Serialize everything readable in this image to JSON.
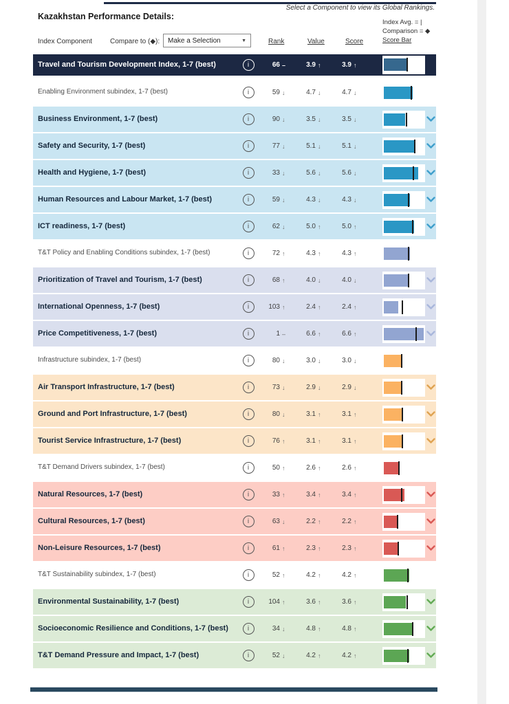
{
  "note": "Select a Component to view its Global Rankings.",
  "title": "Kazakhstan Performance Details:",
  "legend": {
    "line1": "Index Avg. = |",
    "line2": "Comparison = ◆",
    "line3": "Score Bar"
  },
  "controls": {
    "index_component_label": "Index Component",
    "compare_label": "Compare to (◆):",
    "dropdown_value": "Make a Selection",
    "dropdown_caret": "▼",
    "col_rank": "Rank",
    "col_value": "Value",
    "col_score": "Score"
  },
  "dir_glyphs": {
    "up": "↑",
    "down": "↓",
    "same": "–"
  },
  "icons": {
    "info": "i"
  },
  "colors": {
    "rule_top": "#1e2b47",
    "rule_bottom": "#29485e",
    "scrollbar_track": "#f0f0f0",
    "tick": "#1c1c1c",
    "white_box": "#ffffff"
  },
  "groups": {
    "navy": {
      "row": "#1c2843",
      "bar": "#36688e",
      "chev": ""
    },
    "blue": {
      "row": "#c9e5f2",
      "bar": "#2a97c5",
      "chev": "#3f9fcc"
    },
    "lavender": {
      "row": "#dadfee",
      "bar": "#92a5d1",
      "chev": "#a9b7db"
    },
    "orange": {
      "row": "#fce5c8",
      "bar": "#fbb262",
      "chev": "#dfa352"
    },
    "red": {
      "row": "#fdcdc5",
      "bar": "#d95955",
      "chev": "#d95955"
    },
    "green": {
      "row": "#dcebd6",
      "bar": "#5ca654",
      "chev": "#63ab55"
    }
  },
  "rows": [
    {
      "slug": "ttdi",
      "label": "Travel and Tourism Development Index, 1-7 (best)",
      "type": "index",
      "group": "navy",
      "rank": "66",
      "rank_dir": "same",
      "value": "3.9",
      "value_dir": "up",
      "score": "3.9",
      "score_dir": "up",
      "bar_pct": 56,
      "tick_pct": 58,
      "chevron": false
    },
    {
      "slug": "enabling-environment-subindex",
      "label": "Enabling Environment subindex, 1-7 (best)",
      "type": "subindex",
      "group": "blue",
      "rank": "59",
      "rank_dir": "down",
      "value": "4.7",
      "value_dir": "down",
      "score": "4.7",
      "score_dir": "down",
      "bar_pct": 67,
      "tick_pct": 67,
      "chevron": false
    },
    {
      "slug": "business-environment",
      "label": "Business Environment, 1-7 (best)",
      "type": "component",
      "group": "blue",
      "rank": "90",
      "rank_dir": "down",
      "value": "3.5",
      "value_dir": "down",
      "score": "3.5",
      "score_dir": "down",
      "bar_pct": 50,
      "tick_pct": 57,
      "chevron": true
    },
    {
      "slug": "safety-and-security",
      "label": "Safety and Security, 1-7 (best)",
      "type": "component",
      "group": "blue",
      "rank": "77",
      "rank_dir": "down",
      "value": "5.1",
      "value_dir": "down",
      "score": "5.1",
      "score_dir": "down",
      "bar_pct": 73,
      "tick_pct": 76,
      "chevron": true
    },
    {
      "slug": "health-and-hygiene",
      "label": "Health and Hygiene, 1-7 (best)",
      "type": "component",
      "group": "blue",
      "rank": "33",
      "rank_dir": "down",
      "value": "5.6",
      "value_dir": "down",
      "score": "5.6",
      "score_dir": "down",
      "bar_pct": 80,
      "tick_pct": 72,
      "chevron": true
    },
    {
      "slug": "human-resources-labour-market",
      "label": "Human Resources and Labour Market, 1-7 (best)",
      "type": "component",
      "group": "blue",
      "rank": "59",
      "rank_dir": "down",
      "value": "4.3",
      "value_dir": "down",
      "score": "4.3",
      "score_dir": "down",
      "bar_pct": 61,
      "tick_pct": 62,
      "chevron": true
    },
    {
      "slug": "ict-readiness",
      "label": "ICT readiness, 1-7 (best)",
      "type": "component",
      "group": "blue",
      "rank": "62",
      "rank_dir": "down",
      "value": "5.0",
      "value_dir": "up",
      "score": "5.0",
      "score_dir": "up",
      "bar_pct": 71,
      "tick_pct": 71,
      "chevron": true
    },
    {
      "slug": "tt-policy-subindex",
      "label": "T&T Policy and Enabling Conditions subindex, 1-7 (best)",
      "type": "subindex",
      "group": "lavender",
      "rank": "72",
      "rank_dir": "up",
      "value": "4.3",
      "value_dir": "up",
      "score": "4.3",
      "score_dir": "up",
      "bar_pct": 61,
      "tick_pct": 62,
      "chevron": false
    },
    {
      "slug": "prioritization-travel-tourism",
      "label": "Prioritization of Travel and Tourism, 1-7 (best)",
      "type": "component",
      "group": "lavender",
      "rank": "68",
      "rank_dir": "up",
      "value": "4.0",
      "value_dir": "down",
      "score": "4.0",
      "score_dir": "down",
      "bar_pct": 57,
      "tick_pct": 61,
      "chevron": true
    },
    {
      "slug": "international-openness",
      "label": "International Openness, 1-7 (best)",
      "type": "component",
      "group": "lavender",
      "rank": "103",
      "rank_dir": "up",
      "value": "2.4",
      "value_dir": "up",
      "score": "2.4",
      "score_dir": "up",
      "bar_pct": 34,
      "tick_pct": 47,
      "chevron": true
    },
    {
      "slug": "price-competitiveness",
      "label": "Price Competitiveness, 1-7 (best)",
      "type": "component",
      "group": "lavender",
      "rank": "1",
      "rank_dir": "same",
      "value": "6.6",
      "value_dir": "up",
      "score": "6.6",
      "score_dir": "up",
      "bar_pct": 94,
      "tick_pct": 79,
      "chevron": true
    },
    {
      "slug": "infrastructure-subindex",
      "label": "Infrastructure subindex, 1-7 (best)",
      "type": "subindex",
      "group": "orange",
      "rank": "80",
      "rank_dir": "down",
      "value": "3.0",
      "value_dir": "down",
      "score": "3.0",
      "score_dir": "down",
      "bar_pct": 43,
      "tick_pct": 45,
      "chevron": false
    },
    {
      "slug": "air-transport-infrastructure",
      "label": "Air Transport Infrastructure, 1-7 (best)",
      "type": "component",
      "group": "orange",
      "rank": "73",
      "rank_dir": "down",
      "value": "2.9",
      "value_dir": "down",
      "score": "2.9",
      "score_dir": "down",
      "bar_pct": 41,
      "tick_pct": 45,
      "chevron": true
    },
    {
      "slug": "ground-and-port-infrastructure",
      "label": "Ground and Port Infrastructure, 1-7 (best)",
      "type": "component",
      "group": "orange",
      "rank": "80",
      "rank_dir": "down",
      "value": "3.1",
      "value_dir": "up",
      "score": "3.1",
      "score_dir": "up",
      "bar_pct": 44,
      "tick_pct": 47,
      "chevron": true
    },
    {
      "slug": "tourist-service-infrastructure",
      "label": "Tourist Service Infrastructure, 1-7 (best)",
      "type": "component",
      "group": "orange",
      "rank": "76",
      "rank_dir": "up",
      "value": "3.1",
      "value_dir": "up",
      "score": "3.1",
      "score_dir": "up",
      "bar_pct": 44,
      "tick_pct": 47,
      "chevron": true
    },
    {
      "slug": "tt-demand-drivers-subindex",
      "label": "T&T Demand Drivers subindex, 1-7 (best)",
      "type": "subindex",
      "group": "red",
      "rank": "50",
      "rank_dir": "up",
      "value": "2.6",
      "value_dir": "up",
      "score": "2.6",
      "score_dir": "up",
      "bar_pct": 37,
      "tick_pct": 38,
      "chevron": false
    },
    {
      "slug": "natural-resources",
      "label": "Natural Resources, 1-7 (best)",
      "type": "component",
      "group": "red",
      "rank": "33",
      "rank_dir": "up",
      "value": "3.4",
      "value_dir": "up",
      "score": "3.4",
      "score_dir": "up",
      "bar_pct": 49,
      "tick_pct": 45,
      "chevron": true
    },
    {
      "slug": "cultural-resources",
      "label": "Cultural Resources, 1-7 (best)",
      "type": "component",
      "group": "red",
      "rank": "63",
      "rank_dir": "down",
      "value": "2.2",
      "value_dir": "up",
      "score": "2.2",
      "score_dir": "up",
      "bar_pct": 31,
      "tick_pct": 36,
      "chevron": true
    },
    {
      "slug": "non-leisure-resources",
      "label": "Non-Leisure Resources, 1-7 (best)",
      "type": "component",
      "group": "red",
      "rank": "61",
      "rank_dir": "up",
      "value": "2.3",
      "value_dir": "up",
      "score": "2.3",
      "score_dir": "up",
      "bar_pct": 33,
      "tick_pct": 37,
      "chevron": true
    },
    {
      "slug": "tt-sustainability-subindex",
      "label": "T&T Sustainability subindex, 1-7 (best)",
      "type": "subindex",
      "group": "green",
      "rank": "52",
      "rank_dir": "up",
      "value": "4.2",
      "value_dir": "up",
      "score": "4.2",
      "score_dir": "up",
      "bar_pct": 60,
      "tick_pct": 60,
      "chevron": false
    },
    {
      "slug": "environmental-sustainability",
      "label": "Environmental Sustainability, 1-7 (best)",
      "type": "component",
      "group": "green",
      "rank": "104",
      "rank_dir": "up",
      "value": "3.6",
      "value_dir": "up",
      "score": "3.6",
      "score_dir": "up",
      "bar_pct": 51,
      "tick_pct": 58,
      "chevron": true
    },
    {
      "slug": "socioeconomic-resilience",
      "label": "Socioeconomic Resilience and Conditions, 1-7 (best)",
      "type": "component",
      "group": "green",
      "rank": "34",
      "rank_dir": "down",
      "value": "4.8",
      "value_dir": "up",
      "score": "4.8",
      "score_dir": "up",
      "bar_pct": 69,
      "tick_pct": 71,
      "chevron": true
    },
    {
      "slug": "tt-demand-pressure-impact",
      "label": "T&T Demand Pressure and Impact, 1-7 (best)",
      "type": "component",
      "group": "green",
      "rank": "52",
      "rank_dir": "down",
      "value": "4.2",
      "value_dir": "up",
      "score": "4.2",
      "score_dir": "up",
      "bar_pct": 60,
      "tick_pct": 60,
      "chevron": true
    }
  ]
}
